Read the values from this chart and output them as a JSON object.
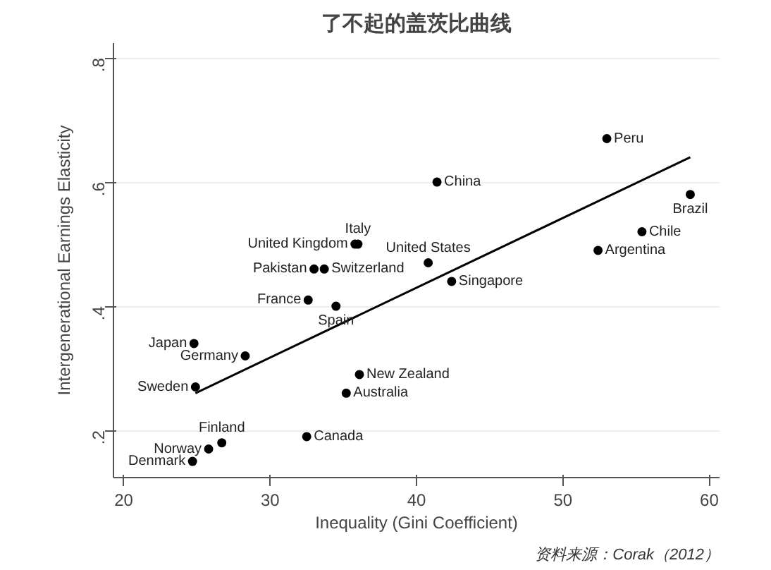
{
  "chart_data": {
    "type": "scatter",
    "title": "了不起的盖茨比曲线",
    "xlabel": "Inequality (Gini Coefficient)",
    "ylabel": "Intergenerational Earnings Elasticity",
    "series": [
      {
        "color": "#000000",
        "marker": "circle",
        "x": [
          53.0,
          41.4,
          58.7,
          55.4,
          52.4,
          40.8,
          42.4,
          36.0,
          35.8,
          33.0,
          33.7,
          32.6,
          34.5,
          24.8,
          28.3,
          24.9,
          36.1,
          35.2,
          32.5,
          26.7,
          25.8,
          24.7
        ],
        "values": [
          0.67,
          0.6,
          0.58,
          0.52,
          0.49,
          0.47,
          0.44,
          0.5,
          0.5,
          0.46,
          0.46,
          0.41,
          0.4,
          0.34,
          0.32,
          0.27,
          0.29,
          0.26,
          0.19,
          0.18,
          0.17,
          0.15
        ]
      },
      {
        "type": "line",
        "color": "#000000",
        "x": [
          24.9,
          58.7
        ],
        "values": [
          0.26,
          0.64
        ]
      }
    ],
    "annotations": [
      {
        "text": "Peru",
        "x": 53.0,
        "y": 0.67
      },
      {
        "text": "China",
        "x": 41.4,
        "y": 0.6
      },
      {
        "text": "Brazil",
        "x": 58.7,
        "y": 0.58
      },
      {
        "text": "Chile",
        "x": 55.4,
        "y": 0.52
      },
      {
        "text": "Argentina",
        "x": 52.4,
        "y": 0.49
      },
      {
        "text": "United States",
        "x": 40.8,
        "y": 0.47
      },
      {
        "text": "Singapore",
        "x": 42.4,
        "y": 0.44
      },
      {
        "text": "Italy",
        "x": 36.0,
        "y": 0.5
      },
      {
        "text": "United Kingdom",
        "x": 35.8,
        "y": 0.5
      },
      {
        "text": "Pakistan",
        "x": 33.0,
        "y": 0.46
      },
      {
        "text": "Switzerland",
        "x": 33.7,
        "y": 0.46
      },
      {
        "text": "France",
        "x": 32.6,
        "y": 0.41
      },
      {
        "text": "Spain",
        "x": 34.5,
        "y": 0.4
      },
      {
        "text": "Japan",
        "x": 24.8,
        "y": 0.34
      },
      {
        "text": "Germany",
        "x": 28.3,
        "y": 0.32
      },
      {
        "text": "Sweden",
        "x": 24.9,
        "y": 0.27
      },
      {
        "text": "New Zealand",
        "x": 36.1,
        "y": 0.29
      },
      {
        "text": "Australia",
        "x": 35.2,
        "y": 0.26
      },
      {
        "text": "Canada",
        "x": 32.5,
        "y": 0.19
      },
      {
        "text": "Finland",
        "x": 26.7,
        "y": 0.18
      },
      {
        "text": "Norway",
        "x": 25.8,
        "y": 0.17
      },
      {
        "text": "Denmark",
        "x": 24.7,
        "y": 0.15
      },
      "资料来源：Corak（2012）"
    ],
    "xlim": [
      19.3,
      60.7
    ],
    "ylim": [
      0.124,
      0.824
    ],
    "xticks": [
      20,
      30,
      40,
      50,
      60
    ],
    "yticks": [
      {
        "value": 0.2,
        "label": ".2"
      },
      {
        "value": 0.4,
        "label": ".4"
      },
      {
        "value": 0.6,
        "label": ".6"
      },
      {
        "value": 0.8,
        "label": ".8"
      }
    ],
    "grid": "y",
    "line_style": "solid"
  }
}
